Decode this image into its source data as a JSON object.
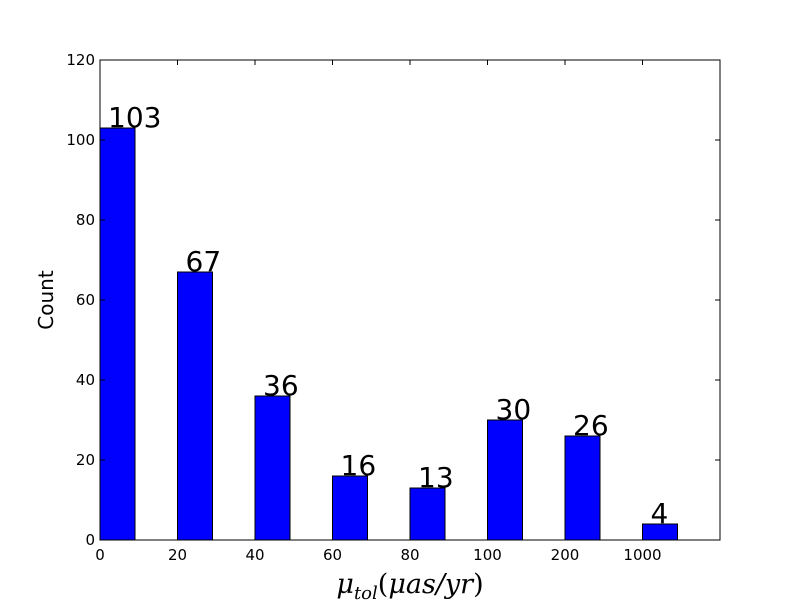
{
  "chart_data": {
    "type": "bar",
    "categories": [
      "0",
      "20",
      "40",
      "60",
      "80",
      "100",
      "200",
      "1000"
    ],
    "values": [
      103,
      67,
      36,
      16,
      13,
      30,
      26,
      4
    ],
    "data_labels": [
      "103",
      "67",
      "36",
      "16",
      "13",
      "30",
      "26",
      "4"
    ],
    "title": "",
    "xlabel": "μtol(μas/yr)",
    "ylabel": "Count",
    "ylim": [
      0,
      120
    ],
    "yticks": [
      "0",
      "20",
      "40",
      "60",
      "80",
      "100",
      "120"
    ],
    "bar_color": "#0000ff",
    "grid": false,
    "legend": "none"
  }
}
